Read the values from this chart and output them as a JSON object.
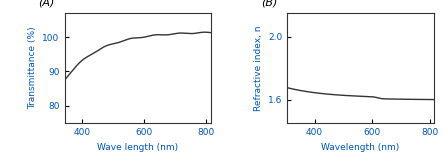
{
  "panel_A": {
    "label": "(A)",
    "xlabel": "Wave length (nm)",
    "ylabel": "Transmittance (%)",
    "xlim": [
      345,
      815
    ],
    "ylim": [
      75,
      107
    ],
    "yticks": [
      80,
      90,
      100
    ],
    "xticks": [
      400,
      600,
      800
    ],
    "line_color": "#333333",
    "line_width": 1.0
  },
  "panel_B": {
    "label": "(B)",
    "xlabel": "Wavelength (nm)",
    "ylabel": "Refractive index, n",
    "xlim": [
      305,
      815
    ],
    "ylim": [
      1.45,
      2.15
    ],
    "yticks": [
      1.6,
      2.0
    ],
    "xticks": [
      400,
      600,
      800
    ],
    "line_color": "#333333",
    "line_width": 1.0
  },
  "label_color": "#000000",
  "axis_label_color": "#0055AA",
  "tick_label_color": "#0055AA",
  "background_color": "#ffffff"
}
